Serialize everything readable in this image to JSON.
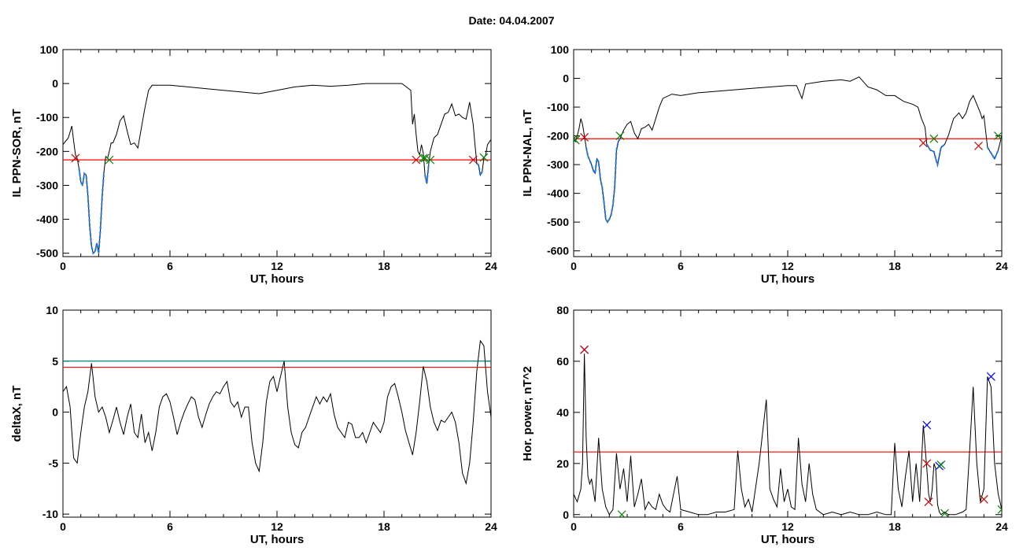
{
  "title": "Date:  04.04.2007",
  "colors": {
    "trace": "#000000",
    "threshold": "#ff0000",
    "threshold2": "#008080",
    "event_start": "#008000",
    "event_end": "#cc0000",
    "peak": "#0000ff",
    "segment": "#1e78e6"
  },
  "chart_data": [
    {
      "type": "line",
      "panel": "top-left",
      "xlabel": "UT, hours",
      "ylabel": "IL PPN-SOR, nT",
      "xlim": [
        0,
        24
      ],
      "ylim": [
        -510,
        100
      ],
      "xticks": [
        0,
        6,
        12,
        18,
        24
      ],
      "yticks": [
        100,
        0,
        -100,
        -200,
        -300,
        -400,
        -500
      ],
      "grid": false,
      "series": [
        {
          "role": "trace",
          "x": [
            0,
            0.3,
            0.5,
            0.6,
            0.7,
            0.8,
            0.9,
            1.0,
            1.1,
            1.2,
            1.3,
            1.4,
            1.5,
            1.6,
            1.7,
            1.8,
            1.9,
            2.0,
            2.1,
            2.2,
            2.3,
            2.4,
            2.5,
            2.6,
            2.7,
            2.8,
            3.0,
            3.2,
            3.4,
            3.6,
            3.8,
            4.0,
            4.2,
            4.4,
            4.6,
            4.8,
            5.0,
            5.2,
            6.0,
            7.0,
            8.0,
            9.0,
            10.0,
            11.0,
            12.0,
            13.0,
            14.0,
            15.0,
            16.0,
            17.0,
            18.0,
            19.0,
            19.5,
            19.6,
            19.7,
            19.8,
            19.9,
            20.0,
            20.1,
            20.2,
            20.3,
            20.4,
            20.5,
            20.6,
            20.8,
            21.0,
            21.2,
            21.4,
            21.6,
            21.8,
            22.0,
            22.2,
            22.4,
            22.6,
            22.8,
            23.0,
            23.1,
            23.2,
            23.3,
            23.4,
            23.5,
            23.6,
            23.7,
            23.8,
            24.0
          ],
          "y": [
            -180,
            -160,
            -125,
            -170,
            -210,
            -220,
            -250,
            -290,
            -300,
            -265,
            -270,
            -330,
            -420,
            -480,
            -500,
            -495,
            -470,
            -500,
            -430,
            -330,
            -260,
            -215,
            -220,
            -200,
            -175,
            -175,
            -150,
            -110,
            -95,
            -140,
            -180,
            -175,
            -190,
            -130,
            -70,
            -20,
            -5,
            -5,
            -5,
            -10,
            -15,
            -20,
            -25,
            -30,
            -20,
            -10,
            -5,
            -8,
            -5,
            0,
            0,
            0,
            -20,
            -120,
            -90,
            -150,
            -200,
            -210,
            -180,
            -205,
            -270,
            -295,
            -240,
            -200,
            -160,
            -150,
            -120,
            -90,
            -85,
            -60,
            -95,
            -90,
            -100,
            -105,
            -55,
            -120,
            -180,
            -235,
            -240,
            -270,
            -260,
            -220,
            -210,
            -180,
            -165
          ]
        },
        {
          "role": "threshold",
          "value": -225
        },
        {
          "role": "event-start-markers",
          "x": [
            2.6,
            20.2,
            20.3,
            20.6,
            23.6
          ],
          "y": [
            -225,
            -220,
            -220,
            -225,
            -218
          ]
        },
        {
          "role": "event-end-markers",
          "x": [
            0.7,
            19.8,
            23.0
          ],
          "y": [
            -220,
            -225,
            -225
          ]
        }
      ]
    },
    {
      "type": "line",
      "panel": "top-right",
      "xlabel": "UT, hours",
      "ylabel": "IL PPN-NAL, nT",
      "xlim": [
        0,
        24
      ],
      "ylim": [
        -620,
        100
      ],
      "xticks": [
        0,
        6,
        12,
        18,
        24
      ],
      "yticks": [
        100,
        0,
        -100,
        -200,
        -300,
        -400,
        -500,
        -600
      ],
      "grid": false,
      "series": [
        {
          "role": "trace",
          "x": [
            0,
            0.1,
            0.2,
            0.3,
            0.4,
            0.5,
            0.6,
            0.7,
            0.8,
            0.9,
            1.0,
            1.1,
            1.2,
            1.3,
            1.4,
            1.5,
            1.6,
            1.7,
            1.8,
            1.9,
            2.0,
            2.1,
            2.2,
            2.3,
            2.4,
            2.5,
            2.6,
            2.8,
            3.0,
            3.2,
            3.4,
            3.6,
            3.8,
            4.0,
            4.2,
            4.4,
            4.6,
            4.8,
            5.0,
            5.5,
            6.0,
            7.0,
            8.0,
            9.0,
            10.0,
            11.0,
            12.0,
            12.5,
            12.8,
            13.0,
            13.5,
            14.0,
            15.0,
            15.5,
            16.0,
            16.5,
            17.0,
            17.5,
            18.0,
            18.5,
            19.0,
            19.3,
            19.5,
            19.7,
            19.8,
            20.0,
            20.2,
            20.3,
            20.4,
            20.6,
            20.8,
            21.0,
            21.3,
            21.6,
            21.8,
            22.0,
            22.2,
            22.4,
            22.6,
            22.8,
            22.9,
            23.0,
            23.2,
            23.4,
            23.6,
            23.8,
            24.0
          ],
          "y": [
            -210,
            -220,
            -200,
            -175,
            -140,
            -160,
            -200,
            -240,
            -270,
            -285,
            -300,
            -320,
            -330,
            -280,
            -290,
            -350,
            -380,
            -430,
            -490,
            -500,
            -490,
            -475,
            -440,
            -380,
            -250,
            -220,
            -210,
            -180,
            -160,
            -150,
            -190,
            -210,
            -175,
            -170,
            -160,
            -180,
            -140,
            -100,
            -70,
            -55,
            -60,
            -50,
            -45,
            -40,
            -35,
            -30,
            -25,
            -25,
            -70,
            -20,
            -15,
            -10,
            -5,
            -10,
            5,
            -30,
            -40,
            -60,
            -60,
            -80,
            -90,
            -100,
            -140,
            -170,
            -230,
            -250,
            -255,
            -280,
            -300,
            -240,
            -230,
            -200,
            -140,
            -120,
            -140,
            -120,
            -80,
            -60,
            -90,
            -120,
            -140,
            -130,
            -240,
            -260,
            -280,
            -250,
            -200
          ]
        },
        {
          "role": "threshold",
          "value": -210
        },
        {
          "role": "event-start-markers",
          "x": [
            0.0,
            0.1,
            2.6,
            20.2,
            23.8
          ],
          "y": [
            -210,
            -215,
            -200,
            -210,
            -200
          ]
        },
        {
          "role": "event-end-markers",
          "x": [
            0.6,
            19.6,
            22.7
          ],
          "y": [
            -205,
            -225,
            -235
          ]
        }
      ]
    },
    {
      "type": "line",
      "panel": "bottom-left",
      "xlabel": "UT, hours",
      "ylabel": "deltaX, nT",
      "xlim": [
        0,
        24
      ],
      "ylim": [
        -10.3,
        10
      ],
      "xticks": [
        0,
        6,
        12,
        18,
        24
      ],
      "yticks": [
        10,
        5,
        0,
        -5,
        -10
      ],
      "grid": false,
      "series": [
        {
          "role": "trace",
          "x": [
            0,
            0.2,
            0.4,
            0.6,
            0.8,
            1.0,
            1.2,
            1.4,
            1.6,
            1.8,
            2.0,
            2.2,
            2.4,
            2.6,
            2.8,
            3.0,
            3.2,
            3.4,
            3.6,
            3.8,
            4.0,
            4.2,
            4.4,
            4.6,
            4.8,
            5.0,
            5.2,
            5.4,
            5.6,
            5.8,
            6.0,
            6.2,
            6.4,
            6.6,
            6.8,
            7.0,
            7.2,
            7.4,
            7.6,
            7.8,
            8.0,
            8.2,
            8.4,
            8.6,
            8.8,
            9.0,
            9.2,
            9.4,
            9.6,
            9.8,
            10.0,
            10.2,
            10.4,
            10.6,
            10.8,
            11.0,
            11.2,
            11.4,
            11.6,
            11.8,
            12.0,
            12.2,
            12.4,
            12.6,
            12.8,
            13.0,
            13.2,
            13.4,
            13.6,
            13.8,
            14.0,
            14.2,
            14.4,
            14.6,
            14.8,
            15.0,
            15.2,
            15.4,
            15.6,
            15.8,
            16.0,
            16.2,
            16.4,
            16.6,
            16.8,
            17.0,
            17.2,
            17.4,
            17.6,
            17.8,
            18.0,
            18.2,
            18.4,
            18.6,
            18.8,
            19.0,
            19.2,
            19.4,
            19.6,
            19.8,
            20.0,
            20.2,
            20.4,
            20.6,
            20.8,
            21.0,
            21.2,
            21.4,
            21.6,
            21.8,
            22.0,
            22.2,
            22.4,
            22.6,
            22.8,
            23.0,
            23.2,
            23.4,
            23.6,
            23.8,
            24.0
          ],
          "y": [
            2,
            2.5,
            0.5,
            -4.5,
            -5,
            -2,
            0.5,
            2,
            4.8,
            1.5,
            0,
            0.5,
            -0.5,
            -2,
            -0.8,
            0.5,
            -1,
            -2.2,
            -0.5,
            0.8,
            -2,
            -2.5,
            -0.2,
            -3,
            -2,
            -3.8,
            -2,
            0.5,
            1.5,
            1.8,
            1,
            -0.5,
            -2.2,
            -1,
            0,
            0.8,
            1.5,
            1.2,
            -0.5,
            -1.5,
            -0.3,
            0.8,
            1.5,
            2,
            1.8,
            2.5,
            3,
            1,
            0.5,
            1,
            -0.5,
            0.5,
            0.5,
            -3,
            -5,
            -5.8,
            -3,
            1,
            3,
            3.5,
            2,
            3.5,
            5,
            0.5,
            -2,
            -3.2,
            -3.5,
            -2,
            -1.5,
            -0.5,
            0.5,
            1.5,
            0.8,
            1.5,
            1,
            1.8,
            -0.2,
            -1.5,
            -2,
            -2.5,
            -1,
            -1.2,
            -2.5,
            -2.5,
            -2,
            -3,
            -2,
            -1,
            -1.5,
            -2,
            -1,
            1.5,
            2.5,
            2.8,
            1.5,
            0,
            -1.8,
            -3,
            -4.2,
            -2,
            1,
            4.5,
            3,
            0.5,
            -1,
            -1.8,
            -0.8,
            -1,
            -0.5,
            0,
            -1,
            -3,
            -6,
            -7,
            -5,
            -1,
            4,
            7,
            6.5,
            2,
            -0.5
          ]
        },
        {
          "role": "threshold",
          "value": 4.4
        },
        {
          "role": "threshold2",
          "value": 5.0
        }
      ]
    },
    {
      "type": "line",
      "panel": "bottom-right",
      "xlabel": "UT, hours",
      "ylabel": "Hor. power, nT^2",
      "xlim": [
        0,
        24
      ],
      "ylim": [
        -1,
        80
      ],
      "xticks": [
        0,
        6,
        12,
        18,
        24
      ],
      "yticks": [
        80,
        60,
        40,
        20,
        0
      ],
      "grid": false,
      "series": [
        {
          "role": "trace",
          "x": [
            0,
            0.2,
            0.4,
            0.5,
            0.6,
            0.7,
            0.8,
            0.9,
            1.0,
            1.2,
            1.4,
            1.6,
            1.8,
            2.0,
            2.2,
            2.4,
            2.6,
            2.8,
            3.0,
            3.2,
            3.4,
            3.6,
            3.8,
            4.0,
            4.2,
            4.4,
            4.6,
            4.8,
            5.0,
            5.2,
            5.4,
            5.6,
            5.8,
            6.0,
            6.5,
            7.0,
            7.5,
            8.0,
            8.5,
            9.0,
            9.2,
            9.4,
            9.6,
            9.8,
            10.0,
            10.4,
            10.8,
            11.0,
            11.2,
            11.4,
            11.6,
            11.8,
            12.0,
            12.2,
            12.4,
            12.6,
            12.8,
            13.0,
            13.2,
            13.4,
            13.6,
            14.0,
            14.5,
            15.0,
            15.5,
            16.0,
            16.5,
            17.0,
            17.5,
            17.8,
            18.0,
            18.2,
            18.4,
            18.6,
            18.8,
            19.0,
            19.2,
            19.4,
            19.6,
            19.8,
            19.9,
            20.0,
            20.1,
            20.2,
            20.3,
            20.4,
            20.5,
            20.6,
            20.8,
            21.0,
            21.4,
            21.8,
            22.0,
            22.2,
            22.4,
            22.6,
            22.8,
            23.0,
            23.2,
            23.4,
            23.6,
            23.8,
            24.0
          ],
          "y": [
            8,
            5,
            10,
            20,
            63,
            30,
            15,
            12,
            14,
            5,
            30,
            10,
            3,
            0,
            2,
            24,
            10,
            18,
            5,
            23,
            3,
            8,
            14,
            2,
            5,
            3,
            2,
            8,
            4,
            2,
            1,
            8,
            15,
            2,
            1,
            0,
            0,
            1,
            1,
            2,
            25,
            10,
            3,
            6,
            1,
            20,
            45,
            10,
            6,
            3,
            18,
            5,
            10,
            3,
            2,
            30,
            12,
            5,
            20,
            8,
            2,
            0,
            1,
            0,
            1,
            0,
            0,
            1,
            0,
            0,
            28,
            10,
            3,
            15,
            25,
            5,
            20,
            5,
            35,
            18,
            8,
            5,
            10,
            20,
            18,
            4,
            1,
            0,
            1,
            0,
            0,
            1,
            2,
            25,
            50,
            20,
            5,
            10,
            54,
            50,
            20,
            8,
            2
          ]
        },
        {
          "role": "threshold",
          "value": 24.5
        },
        {
          "role": "peak-markers",
          "x": [
            0.6,
            19.8,
            20.5,
            23.4
          ],
          "y": [
            64.5,
            35,
            19,
            54
          ]
        },
        {
          "role": "event-end-markers",
          "x": [
            0.6,
            19.8,
            19.9,
            23.0
          ],
          "y": [
            64.5,
            20,
            5,
            6
          ]
        },
        {
          "role": "event-start-markers",
          "x": [
            2.7,
            20.6,
            20.8,
            24.0
          ],
          "y": [
            0,
            19.5,
            0.5,
            2
          ]
        }
      ]
    }
  ]
}
